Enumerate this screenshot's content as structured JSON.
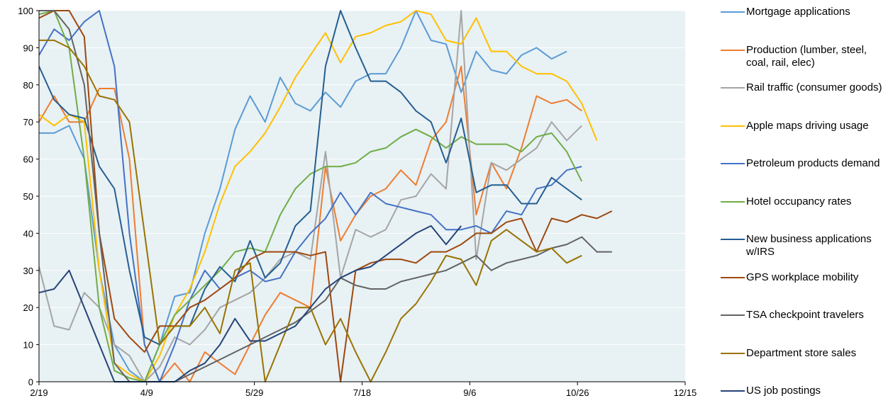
{
  "chart_data": {
    "type": "line",
    "x": [
      "2/19",
      "2/26",
      "3/4",
      "3/11",
      "3/18",
      "3/25",
      "4/1",
      "4/8",
      "4/15",
      "4/22",
      "4/29",
      "5/6",
      "5/13",
      "5/20",
      "5/27",
      "6/3",
      "6/10",
      "6/17",
      "6/24",
      "7/1",
      "7/8",
      "7/15",
      "7/22",
      "7/29",
      "8/5",
      "8/12",
      "8/19",
      "8/26",
      "9/2",
      "9/9",
      "9/16",
      "9/23",
      "9/30",
      "10/7",
      "10/14",
      "10/21",
      "10/28",
      "11/4",
      "11/11"
    ],
    "xlim": [
      "2/19",
      "12/15"
    ],
    "xticks": [
      "2/19",
      "4/9",
      "5/29",
      "7/18",
      "9/6",
      "10/26",
      "12/15"
    ],
    "ylim": [
      0,
      100
    ],
    "yticks": [
      0,
      10,
      20,
      30,
      40,
      50,
      60,
      70,
      80,
      90,
      100
    ],
    "grid": true,
    "legend": "right",
    "series": [
      {
        "name": "Mortgage applications",
        "color": "#5b9bd5",
        "values": [
          67,
          67,
          69,
          60,
          30,
          10,
          3,
          0,
          10,
          23,
          24,
          40,
          52,
          68,
          77,
          70,
          82,
          75,
          73,
          78,
          74,
          81,
          83,
          83,
          90,
          100,
          92,
          91,
          78,
          89,
          84,
          83,
          88,
          90,
          87,
          89,
          null,
          null,
          null
        ]
      },
      {
        "name": "Production (lumber, steel, coal, rail, elec)",
        "color": "#ed7d31",
        "values": [
          70,
          77,
          70,
          70,
          79,
          79,
          60,
          10,
          0,
          5,
          0,
          8,
          5,
          2,
          10,
          18,
          24,
          22,
          20,
          58,
          38,
          45,
          50,
          52,
          57,
          53,
          65,
          70,
          85,
          45,
          59,
          52,
          63,
          77,
          75,
          76,
          73,
          null,
          null
        ]
      },
      {
        "name": "Rail traffic (consumer goods)",
        "color": "#a5a5a5",
        "values": [
          31,
          15,
          14,
          24,
          20,
          10,
          7,
          0,
          4,
          12,
          10,
          14,
          20,
          22,
          24,
          28,
          33,
          35,
          33,
          62,
          28,
          41,
          39,
          41,
          49,
          50,
          56,
          52,
          100,
          33,
          59,
          57,
          60,
          63,
          70,
          65,
          69,
          null,
          null
        ]
      },
      {
        "name": "Apple maps driving usage",
        "color": "#ffc000",
        "values": [
          72,
          69,
          72,
          70,
          30,
          5,
          2,
          0,
          7,
          18,
          25,
          35,
          48,
          58,
          62,
          67,
          74,
          82,
          88,
          94,
          86,
          93,
          94,
          96,
          97,
          100,
          99,
          92,
          91,
          98,
          89,
          89,
          85,
          83,
          83,
          81,
          75,
          65,
          null
        ]
      },
      {
        "name": "Petroleum products demand",
        "color": "#4472c4",
        "values": [
          88,
          95,
          92,
          97,
          100,
          85,
          40,
          10,
          0,
          10,
          22,
          30,
          25,
          28,
          30,
          27,
          28,
          35,
          40,
          44,
          51,
          45,
          51,
          48,
          47,
          46,
          45,
          41,
          41,
          42,
          40,
          46,
          45,
          52,
          53,
          57,
          58,
          null,
          null
        ]
      },
      {
        "name": "Hotel occupancy rates",
        "color": "#70ad47",
        "values": [
          99,
          100,
          90,
          60,
          20,
          3,
          1,
          0,
          10,
          18,
          22,
          26,
          30,
          35,
          36,
          35,
          45,
          52,
          56,
          58,
          58,
          59,
          62,
          63,
          66,
          68,
          66,
          63,
          66,
          64,
          64,
          64,
          62,
          66,
          67,
          62,
          54,
          null,
          null
        ]
      },
      {
        "name": "New business applications w/IRS",
        "color": "#255e91",
        "values": [
          85,
          76,
          72,
          71,
          58,
          52,
          30,
          12,
          10,
          15,
          15,
          25,
          31,
          27,
          38,
          28,
          32,
          42,
          46,
          85,
          100,
          90,
          81,
          81,
          78,
          73,
          70,
          59,
          71,
          51,
          53,
          53,
          48,
          48,
          55,
          52,
          49,
          null,
          null
        ]
      },
      {
        "name": "GPS workplace mobility",
        "color": "#9e480e",
        "values": [
          98,
          100,
          100,
          93,
          40,
          17,
          12,
          8,
          15,
          15,
          20,
          22,
          25,
          28,
          33,
          35,
          35,
          35,
          34,
          35,
          0,
          30,
          32,
          33,
          33,
          32,
          35,
          35,
          37,
          40,
          40,
          43,
          44,
          35,
          44,
          43,
          45,
          44,
          46
        ]
      },
      {
        "name": "TSA checkpoint travelers",
        "color": "#636363",
        "values": [
          100,
          100,
          95,
          80,
          40,
          5,
          0,
          0,
          0,
          0,
          2,
          4,
          6,
          8,
          10,
          12,
          14,
          16,
          19,
          22,
          28,
          26,
          25,
          25,
          27,
          28,
          29,
          30,
          32,
          34,
          30,
          32,
          33,
          34,
          36,
          37,
          39,
          35,
          35
        ]
      },
      {
        "name": "Department store sales",
        "color": "#997300",
        "values": [
          92,
          92,
          90,
          85,
          77,
          76,
          70,
          40,
          10,
          15,
          15,
          20,
          13,
          30,
          32,
          0,
          10,
          20,
          20,
          10,
          17,
          8,
          0,
          8,
          17,
          21,
          27,
          34,
          33,
          26,
          38,
          41,
          38,
          35,
          36,
          32,
          34,
          null,
          null
        ]
      },
      {
        "name": "US job postings",
        "color": "#264478",
        "values": [
          24,
          25,
          30,
          20,
          10,
          0,
          0,
          0,
          0,
          0,
          3,
          5,
          10,
          17,
          11,
          11,
          13,
          15,
          20,
          25,
          28,
          30,
          31,
          34,
          37,
          40,
          42,
          37,
          42,
          null,
          null,
          null,
          null,
          null,
          null,
          null,
          null,
          null,
          null
        ]
      }
    ]
  }
}
